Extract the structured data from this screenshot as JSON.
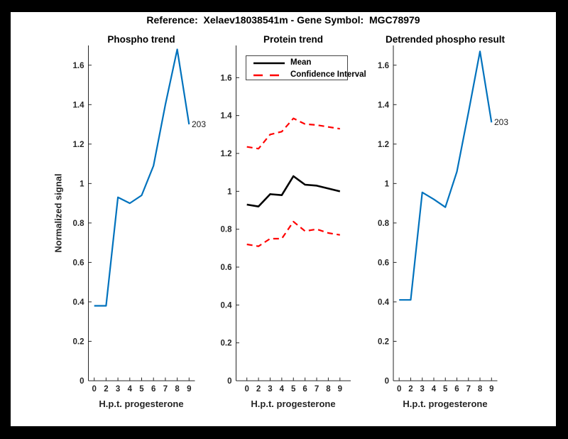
{
  "figure_title": "Reference:  Xelaev18038541m - Gene Symbol:  MGC78979",
  "colors": {
    "line_blue": "#0072BD",
    "mean_black": "#000000",
    "ci_red": "#ff0000",
    "axis": "#262626",
    "figure_background": "#ffffff",
    "frame": "#000000"
  },
  "chart_data": [
    {
      "type": "line",
      "title": "Phospho trend",
      "xlabel": "H.p.t. progesterone",
      "ylabel": "Normalized signal",
      "x_tick_labels": [
        "0",
        "2",
        "3",
        "4",
        "5",
        "6",
        "7",
        "8",
        "9"
      ],
      "y_tick_values": [
        0,
        0.2,
        0.4,
        0.6,
        0.8,
        1,
        1.2,
        1.4,
        1.6
      ],
      "y_tick_labels": [
        "0",
        "0.2",
        "0.4",
        "0.6",
        "0.8",
        "1",
        "1.2",
        "1.4",
        "1.6"
      ],
      "ylim": [
        0,
        1.7
      ],
      "grid": false,
      "series": [
        {
          "name": "phospho-signal",
          "color": "#0072BD",
          "style": "solid",
          "width": 2.2,
          "values": [
            0.38,
            0.38,
            0.93,
            0.9,
            0.94,
            1.09,
            1.4,
            1.68,
            1.3
          ]
        }
      ],
      "end_point_label": "203"
    },
    {
      "type": "line",
      "title": "Protein trend",
      "xlabel": "H.p.t. progesterone",
      "ylabel": "",
      "x_tick_labels": [
        "0",
        "2",
        "3",
        "4",
        "5",
        "6",
        "7",
        "8",
        "9"
      ],
      "y_tick_values": [
        0,
        0.2,
        0.4,
        0.6,
        0.8,
        1,
        1.2,
        1.4,
        1.6
      ],
      "y_tick_labels": [
        "0",
        "0.2",
        "0.4",
        "0.6",
        "0.8",
        "1",
        "1.2",
        "1.4",
        "1.6"
      ],
      "ylim": [
        0,
        1.77
      ],
      "grid": false,
      "legend_position": "top-left",
      "legend": [
        {
          "label": "Mean",
          "color": "#000000",
          "style": "solid"
        },
        {
          "label": "Confidence Interval",
          "color": "#ff0000",
          "style": "dashed"
        }
      ],
      "series": [
        {
          "name": "mean",
          "color": "#000000",
          "style": "solid",
          "width": 2.6,
          "values": [
            0.93,
            0.92,
            0.985,
            0.98,
            1.08,
            1.035,
            1.03,
            1.015,
            1.0
          ]
        },
        {
          "name": "ci-upper",
          "color": "#ff0000",
          "style": "dashed",
          "width": 2.2,
          "values": [
            1.235,
            1.225,
            1.3,
            1.315,
            1.385,
            1.355,
            1.35,
            1.34,
            1.33
          ]
        },
        {
          "name": "ci-lower",
          "color": "#ff0000",
          "style": "dashed",
          "width": 2.2,
          "values": [
            0.72,
            0.71,
            0.75,
            0.75,
            0.84,
            0.79,
            0.8,
            0.78,
            0.77
          ]
        }
      ]
    },
    {
      "type": "line",
      "title": "Detrended phospho result",
      "xlabel": "H.p.t. progesterone",
      "ylabel": "",
      "x_tick_labels": [
        "0",
        "2",
        "3",
        "4",
        "5",
        "6",
        "7",
        "8",
        "9"
      ],
      "y_tick_values": [
        0,
        0.2,
        0.4,
        0.6,
        0.8,
        1,
        1.2,
        1.4,
        1.6
      ],
      "y_tick_labels": [
        "0",
        "0.2",
        "0.4",
        "0.6",
        "0.8",
        "1",
        "1.2",
        "1.4",
        "1.6"
      ],
      "ylim": [
        0,
        1.7
      ],
      "grid": false,
      "series": [
        {
          "name": "detrended-phospho",
          "color": "#0072BD",
          "style": "solid",
          "width": 2.2,
          "values": [
            0.41,
            0.41,
            0.955,
            0.92,
            0.88,
            1.06,
            1.36,
            1.67,
            1.31
          ]
        }
      ],
      "end_point_label": "203"
    }
  ]
}
